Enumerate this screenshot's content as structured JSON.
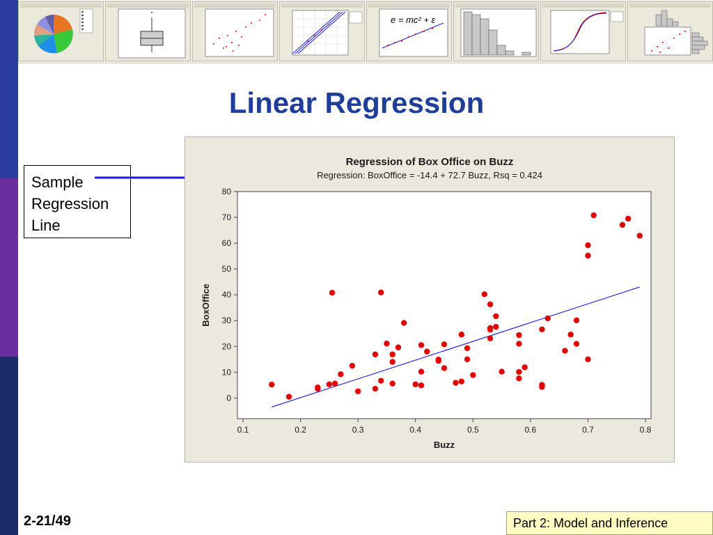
{
  "slide": {
    "title": "Linear Regression",
    "page_number": "2-21/49",
    "footer_part": "Part 2: Model and Inference"
  },
  "callout": {
    "lines": [
      "Sample",
      "Regression",
      "Line"
    ]
  },
  "thumbnail_strip": {
    "items": [
      {
        "name": "pie-chart-thumbnail",
        "kind": "pie"
      },
      {
        "name": "boxplot-thumbnail",
        "kind": "boxplot"
      },
      {
        "name": "scatterplot-thumbnail",
        "kind": "scatter"
      },
      {
        "name": "probability-plot-thumbnail",
        "kind": "probability"
      },
      {
        "name": "regression-formula-thumbnail",
        "kind": "formula",
        "formula": "e = mc² + ε"
      },
      {
        "name": "histogram-thumbnail",
        "kind": "histogram"
      },
      {
        "name": "empirical-cdf-thumbnail",
        "kind": "cdf"
      },
      {
        "name": "marginal-plot-thumbnail",
        "kind": "marginal"
      }
    ]
  },
  "colors": {
    "title": "#1f3d99",
    "left_bar": [
      "#2a3d9e",
      "#6a2ea0",
      "#1b2a6b"
    ],
    "points": "#e00000",
    "fit_line": "#1a1adc",
    "chart_bg": "#ebe8dd",
    "footer_box": "#fffbc2"
  },
  "chart_data": {
    "type": "scatter",
    "title": "Regression of Box Office on Buzz",
    "subtitle": "Regression: BoxOffice = -14.4 + 72.7 Buzz, Rsq = 0.424",
    "xlabel": "Buzz",
    "ylabel": "BoxOffice",
    "xlim": [
      0.1,
      0.8
    ],
    "ylim": [
      -8,
      80
    ],
    "x_ticks": [
      0.1,
      0.2,
      0.3,
      0.4,
      0.5,
      0.6,
      0.7,
      0.8
    ],
    "x_tick_labels": [
      "0.1",
      "0.2",
      "0.3",
      "0.4",
      "0.5",
      "0.6",
      "0.7",
      "0.8"
    ],
    "y_ticks": [
      0,
      10,
      20,
      30,
      40,
      50,
      60,
      70,
      80
    ],
    "y_tick_labels": [
      "0",
      "10",
      "20",
      "30",
      "40",
      "50",
      "60",
      "70",
      "80"
    ],
    "grid": false,
    "regression": {
      "intercept": -14.4,
      "slope": 72.7,
      "x_range": [
        0.15,
        0.79
      ]
    },
    "points": [
      {
        "x": 0.15,
        "y": 5.2
      },
      {
        "x": 0.18,
        "y": 0.5
      },
      {
        "x": 0.23,
        "y": 4.1
      },
      {
        "x": 0.23,
        "y": 3.6
      },
      {
        "x": 0.25,
        "y": 5.3
      },
      {
        "x": 0.255,
        "y": 40.8
      },
      {
        "x": 0.26,
        "y": 5.6
      },
      {
        "x": 0.27,
        "y": 9.2
      },
      {
        "x": 0.29,
        "y": 12.5
      },
      {
        "x": 0.3,
        "y": 2.6
      },
      {
        "x": 0.33,
        "y": 16.9
      },
      {
        "x": 0.33,
        "y": 3.6
      },
      {
        "x": 0.34,
        "y": 40.9
      },
      {
        "x": 0.34,
        "y": 6.7
      },
      {
        "x": 0.35,
        "y": 21.1
      },
      {
        "x": 0.36,
        "y": 14.0
      },
      {
        "x": 0.36,
        "y": 16.9
      },
      {
        "x": 0.36,
        "y": 5.6
      },
      {
        "x": 0.37,
        "y": 19.6
      },
      {
        "x": 0.38,
        "y": 29.1
      },
      {
        "x": 0.4,
        "y": 5.3
      },
      {
        "x": 0.41,
        "y": 20.5
      },
      {
        "x": 0.41,
        "y": 10.2
      },
      {
        "x": 0.41,
        "y": 4.9
      },
      {
        "x": 0.42,
        "y": 18.0
      },
      {
        "x": 0.44,
        "y": 14.9
      },
      {
        "x": 0.44,
        "y": 14.4
      },
      {
        "x": 0.45,
        "y": 20.8
      },
      {
        "x": 0.45,
        "y": 11.6
      },
      {
        "x": 0.47,
        "y": 5.9
      },
      {
        "x": 0.48,
        "y": 24.6
      },
      {
        "x": 0.48,
        "y": 6.4
      },
      {
        "x": 0.49,
        "y": 19.3
      },
      {
        "x": 0.49,
        "y": 15.0
      },
      {
        "x": 0.5,
        "y": 8.9
      },
      {
        "x": 0.52,
        "y": 40.2
      },
      {
        "x": 0.53,
        "y": 36.3
      },
      {
        "x": 0.53,
        "y": 27.1
      },
      {
        "x": 0.53,
        "y": 26.5
      },
      {
        "x": 0.53,
        "y": 23.1
      },
      {
        "x": 0.54,
        "y": 31.7
      },
      {
        "x": 0.54,
        "y": 27.6
      },
      {
        "x": 0.55,
        "y": 10.2
      },
      {
        "x": 0.58,
        "y": 24.4
      },
      {
        "x": 0.58,
        "y": 21.0
      },
      {
        "x": 0.58,
        "y": 10.1
      },
      {
        "x": 0.58,
        "y": 7.6
      },
      {
        "x": 0.59,
        "y": 11.9
      },
      {
        "x": 0.62,
        "y": 26.6
      },
      {
        "x": 0.62,
        "y": 5.1
      },
      {
        "x": 0.62,
        "y": 4.3
      },
      {
        "x": 0.63,
        "y": 30.9
      },
      {
        "x": 0.66,
        "y": 18.3
      },
      {
        "x": 0.67,
        "y": 24.6
      },
      {
        "x": 0.68,
        "y": 30.1
      },
      {
        "x": 0.68,
        "y": 21.0
      },
      {
        "x": 0.7,
        "y": 59.2
      },
      {
        "x": 0.7,
        "y": 55.2
      },
      {
        "x": 0.7,
        "y": 15.0
      },
      {
        "x": 0.71,
        "y": 70.8
      },
      {
        "x": 0.76,
        "y": 67.1
      },
      {
        "x": 0.77,
        "y": 69.5
      },
      {
        "x": 0.79,
        "y": 62.9
      }
    ]
  }
}
